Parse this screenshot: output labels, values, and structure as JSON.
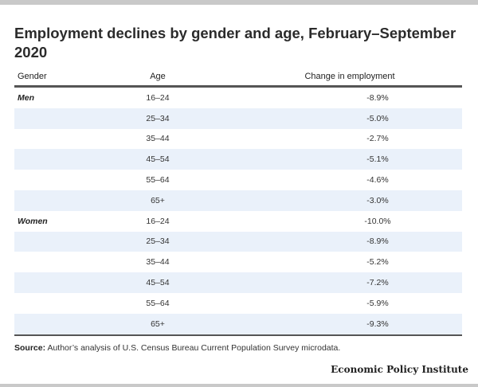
{
  "title": "Employment declines by gender and age, February–September 2020",
  "columns": {
    "gender": "Gender",
    "age": "Age",
    "change": "Change in employment"
  },
  "groups": [
    "Men",
    "Women"
  ],
  "rows": [
    {
      "gender": "Men",
      "age": "16–24",
      "change": "-8.9%"
    },
    {
      "gender": "",
      "age": "25–34",
      "change": "-5.0%"
    },
    {
      "gender": "",
      "age": "35–44",
      "change": "-2.7%"
    },
    {
      "gender": "",
      "age": "45–54",
      "change": "-5.1%"
    },
    {
      "gender": "",
      "age": "55–64",
      "change": "-4.6%"
    },
    {
      "gender": "",
      "age": "65+",
      "change": "-3.0%"
    },
    {
      "gender": "Women",
      "age": "16–24",
      "change": "-10.0%"
    },
    {
      "gender": "",
      "age": "25–34",
      "change": "-8.9%"
    },
    {
      "gender": "",
      "age": "35–44",
      "change": "-5.2%"
    },
    {
      "gender": "",
      "age": "45–54",
      "change": "-7.2%"
    },
    {
      "gender": "",
      "age": "55–64",
      "change": "-5.9%"
    },
    {
      "gender": "",
      "age": "65+",
      "change": "-9.3%"
    }
  ],
  "source_label": "Source:",
  "source_text": "Author’s analysis of U.S. Census Bureau Current Population Survey microdata.",
  "brand": "Economic Policy Institute",
  "colors": {
    "row_shade": "#eaf1fa",
    "rule": "#555555"
  },
  "chart_data": {
    "type": "table",
    "title": "Employment declines by gender and age, February–September 2020",
    "columns": [
      "Gender",
      "Age",
      "Change in employment"
    ],
    "categories": [
      "16–24",
      "25–34",
      "35–44",
      "45–54",
      "55–64",
      "65+"
    ],
    "series": [
      {
        "name": "Men",
        "values": [
          -8.9,
          -5.0,
          -2.7,
          -5.1,
          -4.6,
          -3.0
        ]
      },
      {
        "name": "Women",
        "values": [
          -10.0,
          -8.9,
          -5.2,
          -7.2,
          -5.9,
          -9.3
        ]
      }
    ],
    "unit": "%"
  }
}
